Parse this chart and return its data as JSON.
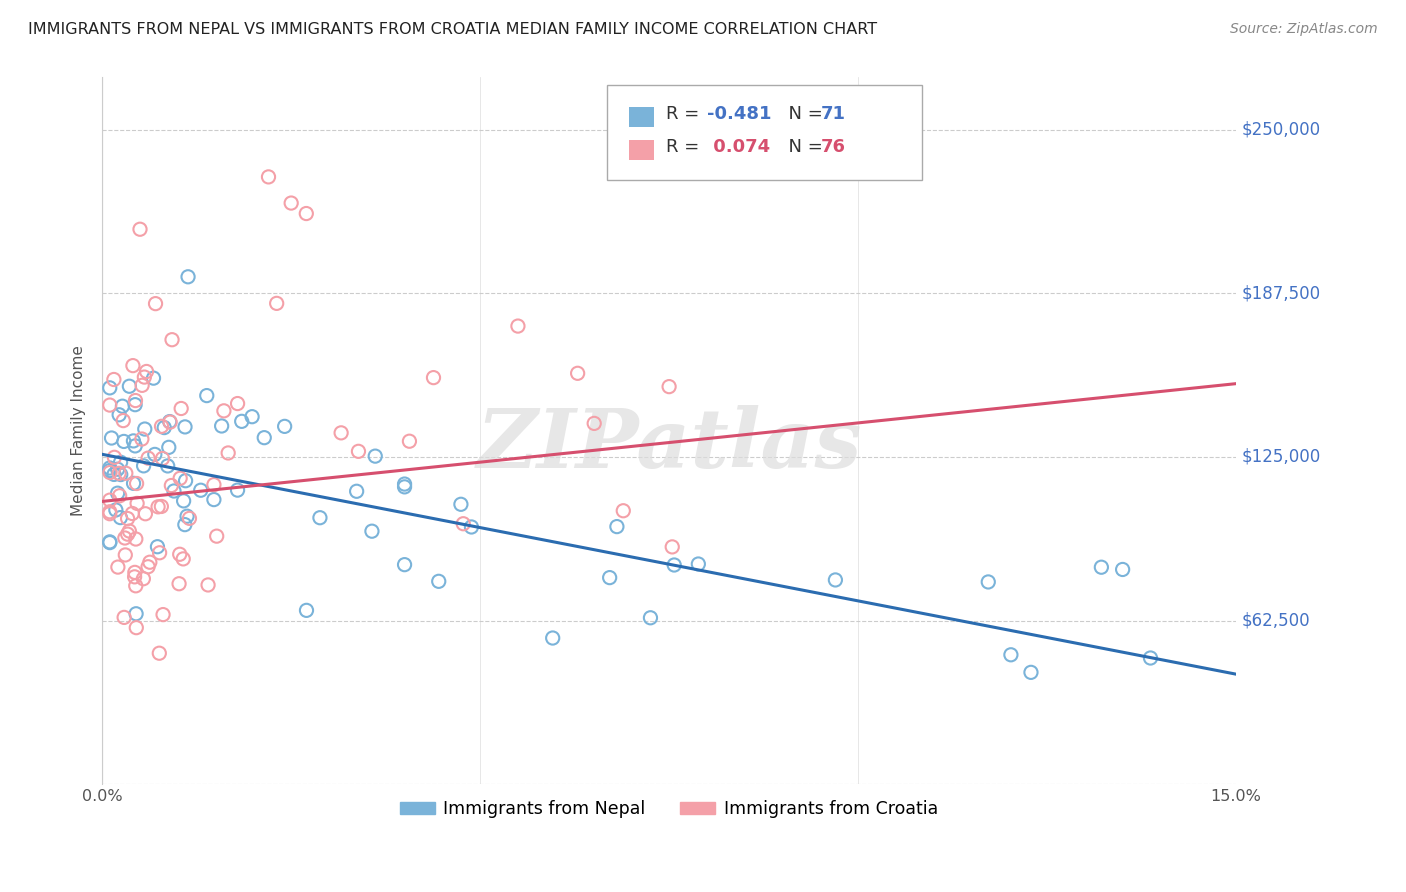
{
  "title": "IMMIGRANTS FROM NEPAL VS IMMIGRANTS FROM CROATIA MEDIAN FAMILY INCOME CORRELATION CHART",
  "source": "Source: ZipAtlas.com",
  "ylabel": "Median Family Income",
  "xlim": [
    0.0,
    0.15
  ],
  "ylim": [
    0,
    270000
  ],
  "yticks": [
    0,
    62500,
    125000,
    187500,
    250000
  ],
  "xticks": [
    0.0,
    0.05,
    0.1,
    0.15
  ],
  "nepal_color": "#7ab3d9",
  "nepal_line_color": "#2b6cb0",
  "croatia_color": "#f4a0a8",
  "croatia_line_color": "#d64f6e",
  "nepal_R": -0.481,
  "nepal_N": 71,
  "croatia_R": 0.074,
  "croatia_N": 76,
  "label_color": "#4472c4",
  "background_color": "#ffffff",
  "watermark": "ZIPatlas",
  "nepal_line_x0": 0.0,
  "nepal_line_y0": 126000,
  "nepal_line_x1": 0.15,
  "nepal_line_y1": 42000,
  "croatia_line_x0": 0.0,
  "croatia_line_y0": 108000,
  "croatia_line_x1": 0.15,
  "croatia_line_y1": 153000
}
